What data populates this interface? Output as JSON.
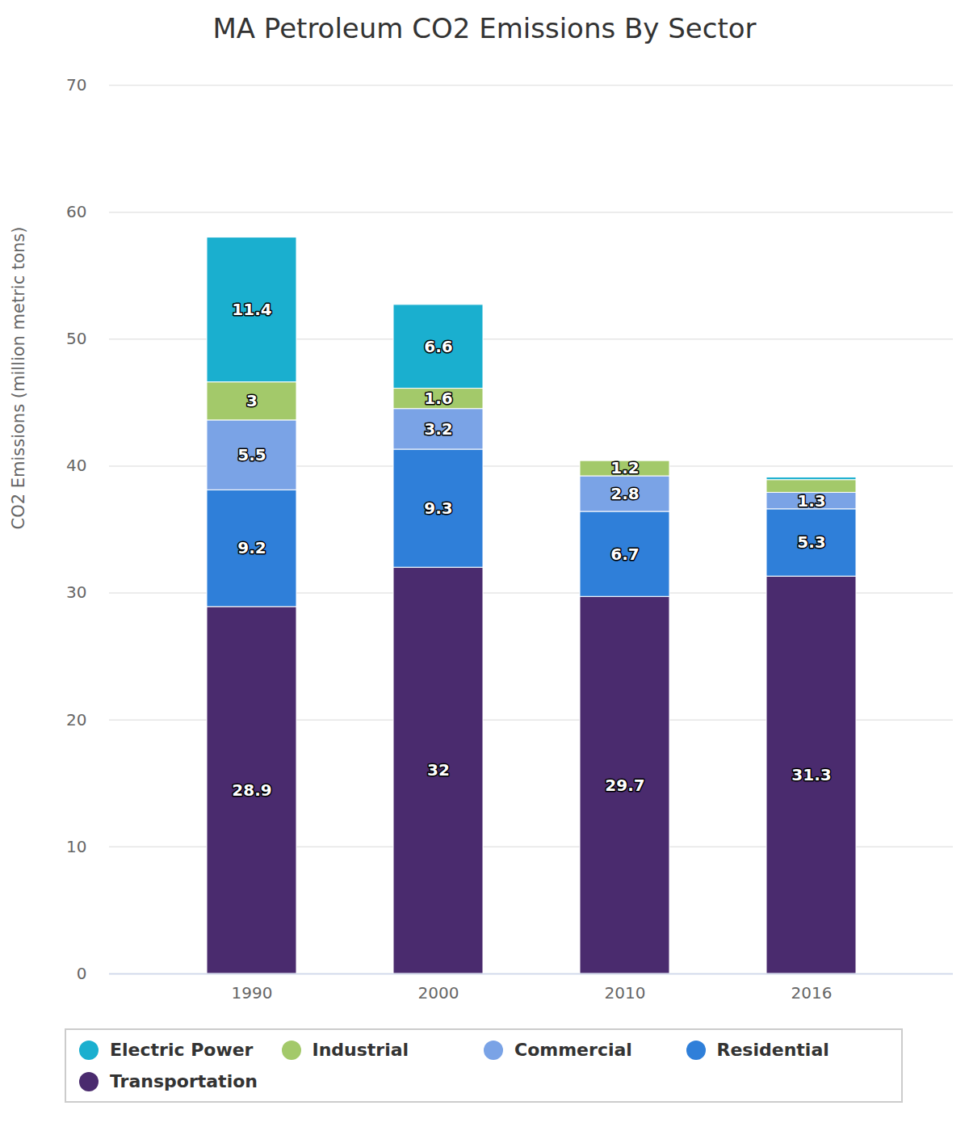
{
  "chart_data": {
    "type": "bar",
    "title": "MA Petroleum CO2 Emissions By Sector",
    "ylabel": "CO2 Emissions (million metric tons)",
    "categories": [
      "1990",
      "2000",
      "2010",
      "2016"
    ],
    "series": [
      {
        "name": "Electric Power",
        "color": "#1aafcf",
        "values": [
          11.4,
          6.6,
          null,
          0.2
        ],
        "value_labels": [
          "11.4",
          "6.6",
          null,
          null
        ]
      },
      {
        "name": "Industrial",
        "color": "#a3c96a",
        "values": [
          3,
          1.6,
          1.2,
          1.0
        ],
        "value_labels": [
          "3",
          "1.6",
          "1.2",
          null
        ]
      },
      {
        "name": "Commercial",
        "color": "#7aa3e6",
        "values": [
          5.5,
          3.2,
          2.8,
          1.3
        ]
      },
      {
        "name": "Residential",
        "color": "#2f7fd9",
        "values": [
          9.2,
          9.3,
          6.7,
          5.3
        ]
      },
      {
        "name": "Transportation",
        "color": "#4a2b6e",
        "values": [
          28.9,
          32,
          29.7,
          31.3
        ]
      }
    ],
    "ylim": [
      0,
      70
    ],
    "yticks": [
      0,
      10,
      20,
      30,
      40,
      50,
      60,
      70
    ],
    "grid": true,
    "stacked": true,
    "data_labels": true,
    "legend": "bottom"
  }
}
